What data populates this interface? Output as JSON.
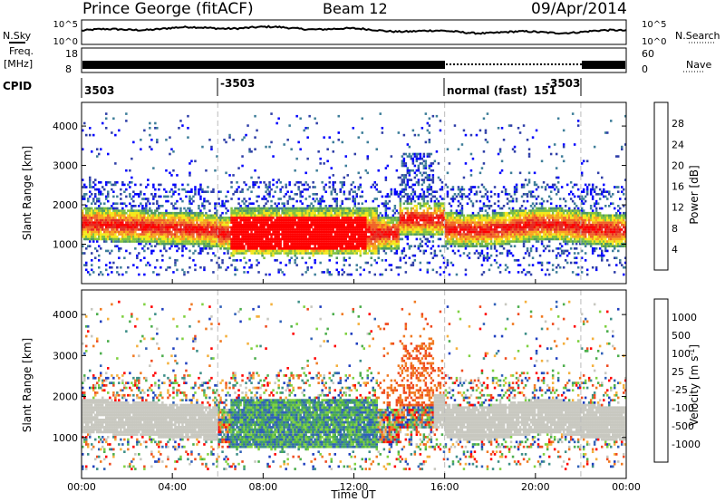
{
  "header": {
    "station": "Prince George (fitACF)",
    "beam": "Beam 12",
    "date": "09/Apr/2014"
  },
  "summary_panels": {
    "nsky_label": "N.Sky",
    "nsearch_label": "N.Search",
    "noise_ticks": [
      "10^5",
      "10^0"
    ],
    "freq_label_1": "Freq.",
    "freq_label_2": "[MHz]",
    "freq_ticks": [
      "18",
      "8"
    ],
    "nave_label": "Nave",
    "nave_ticks": [
      "60",
      "0"
    ],
    "cpid_label": "CPID",
    "cpid_annotations": [
      "3503",
      "-3503",
      "normal (fast)",
      "151",
      "-3503"
    ]
  },
  "colors": {
    "power_scale": [
      "#0000ff",
      "#2f3fa8",
      "#3e7e99",
      "#4f9a61",
      "#7fc140",
      "#f4e81c",
      "#f7a41e",
      "#f06428",
      "#e42a22",
      "#ff0000"
    ],
    "velocity_scale": [
      "#1f3fbf",
      "#3060b8",
      "#3e8f88",
      "#4cae4c",
      "#7fd141",
      "#c8c8c0",
      "#f4b03c",
      "#f07a22",
      "#ef4b1f",
      "#ff0000"
    ]
  },
  "chart_data": [
    {
      "type": "heatmap",
      "title": "",
      "xlabel": "",
      "ylabel": "Slant Range [km]",
      "xlim": [
        "00:00",
        "24:00"
      ],
      "ylim": [
        0,
        4600
      ],
      "y_ticks": [
        "1000",
        "2000",
        "3000",
        "4000"
      ],
      "colorbar_label": "Power [dB]",
      "colorbar_ticks": [
        "4",
        "8",
        "12",
        "16",
        "20",
        "24",
        "28"
      ],
      "colorbar_range": [
        0,
        30
      ],
      "mode_change_markers": [
        "06:00",
        "16:00",
        "22:00"
      ]
    },
    {
      "type": "heatmap",
      "title": "",
      "xlabel": "Time UT",
      "ylabel": "Slant Range [km]",
      "xlim": [
        "00:00",
        "24:00"
      ],
      "x_ticks": [
        "00:00",
        "04:00",
        "08:00",
        "12:00",
        "16:00",
        "20:00",
        "00:00"
      ],
      "ylim": [
        0,
        4600
      ],
      "y_ticks": [
        "1000",
        "2000",
        "3000",
        "4000"
      ],
      "colorbar_label": "Velocity [m s",
      "colorbar_label_sup": "-1",
      "colorbar_label_end": "]",
      "colorbar_ticks": [
        "1000",
        "500",
        "100",
        "25",
        "-25",
        "-100",
        "-500",
        "-1000"
      ],
      "ground_scatter_color": "#c8c8c0",
      "mode_change_markers": [
        "06:00",
        "16:00",
        "22:00"
      ]
    }
  ]
}
